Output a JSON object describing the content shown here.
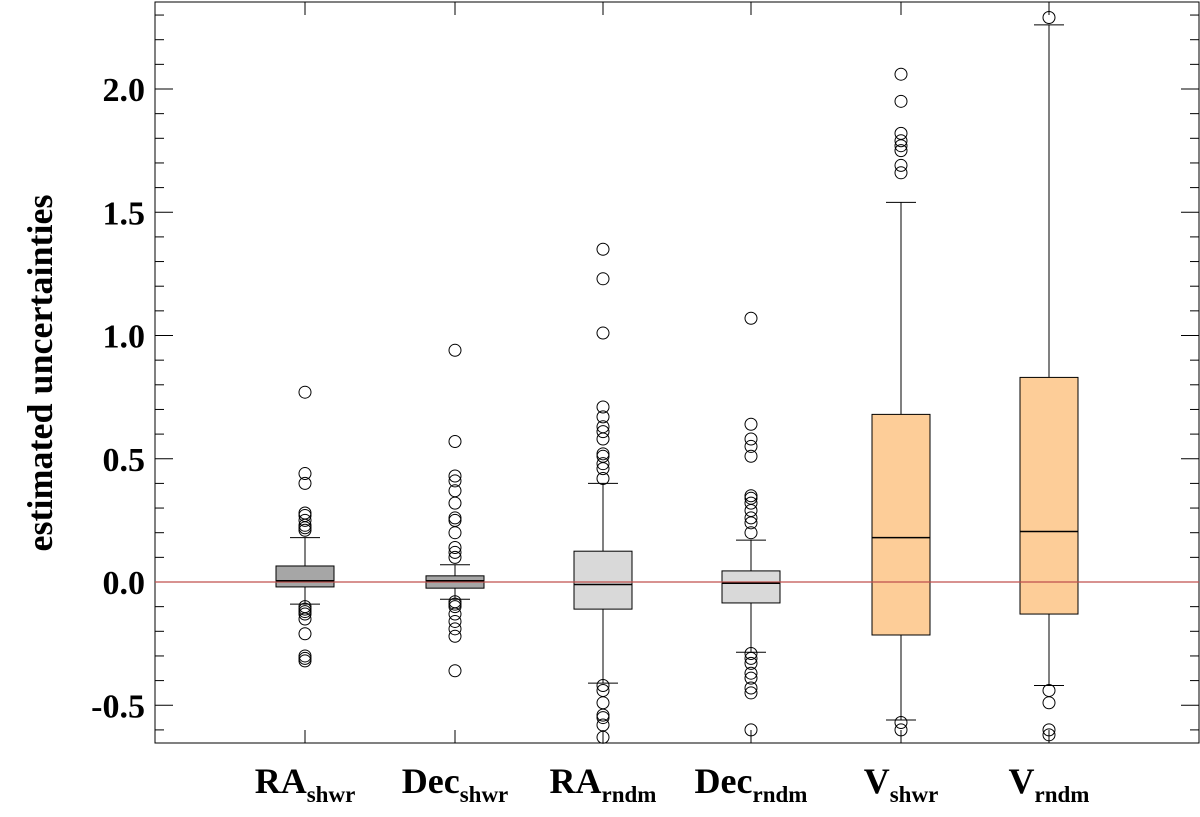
{
  "chart_data": {
    "type": "box",
    "title": "",
    "xlabel": "",
    "ylabel": "estimated uncertainties",
    "ylim": [
      -0.65,
      2.35
    ],
    "yticks": [
      -0.5,
      0.0,
      0.5,
      1.0,
      1.5,
      2.0
    ],
    "ytick_labels": [
      "-0.5",
      "0.0",
      "0.5",
      "1.0",
      "1.5",
      "2.0"
    ],
    "reference_line": {
      "y": 0.0,
      "color": "#c0504d"
    },
    "categories": [
      {
        "main": "RA",
        "sub": "shwr"
      },
      {
        "main": "Dec",
        "sub": "shwr"
      },
      {
        "main": "RA",
        "sub": "rndm"
      },
      {
        "main": "Dec",
        "sub": "rndm"
      },
      {
        "main": "V",
        "sub": "shwr"
      },
      {
        "main": "V",
        "sub": "rndm"
      }
    ],
    "boxes": [
      {
        "name": "RA_shwr",
        "q1": -0.02,
        "median": 0.005,
        "q3": 0.065,
        "whisker_low": -0.09,
        "whisker_high": 0.18,
        "fill": "#a6a6a6",
        "outliers": [
          0.77,
          0.44,
          0.4,
          0.28,
          0.27,
          0.25,
          0.23,
          0.22,
          0.21,
          -0.1,
          -0.11,
          -0.12,
          -0.13,
          -0.15,
          -0.21,
          -0.3,
          -0.31,
          -0.32
        ]
      },
      {
        "name": "Dec_shwr",
        "q1": -0.025,
        "median": 0.005,
        "q3": 0.025,
        "whisker_low": -0.07,
        "whisker_high": 0.07,
        "fill": "#a6a6a6",
        "outliers": [
          0.94,
          0.57,
          0.43,
          0.41,
          0.37,
          0.32,
          0.26,
          0.25,
          0.2,
          0.14,
          0.12,
          0.1,
          -0.08,
          -0.09,
          -0.1,
          -0.13,
          -0.16,
          -0.19,
          -0.22,
          -0.36
        ]
      },
      {
        "name": "RA_rndm",
        "q1": -0.11,
        "median": -0.01,
        "q3": 0.125,
        "whisker_low": -0.41,
        "whisker_high": 0.4,
        "fill": "#d9d9d9",
        "outliers": [
          1.35,
          1.23,
          1.01,
          0.71,
          0.67,
          0.63,
          0.61,
          0.58,
          0.52,
          0.51,
          0.48,
          0.46,
          0.42,
          -0.42,
          -0.44,
          -0.49,
          -0.54,
          -0.55,
          -0.58,
          -0.63
        ]
      },
      {
        "name": "Dec_rndm",
        "q1": -0.085,
        "median": -0.005,
        "q3": 0.045,
        "whisker_low": -0.285,
        "whisker_high": 0.17,
        "fill": "#d9d9d9",
        "outliers": [
          1.07,
          0.64,
          0.58,
          0.55,
          0.51,
          0.35,
          0.34,
          0.32,
          0.29,
          0.26,
          0.24,
          0.2,
          -0.29,
          -0.31,
          -0.33,
          -0.37,
          -0.39,
          -0.43,
          -0.45,
          -0.6
        ]
      },
      {
        "name": "V_shwr",
        "q1": -0.215,
        "median": 0.18,
        "q3": 0.68,
        "whisker_low": -0.56,
        "whisker_high": 1.54,
        "fill": "#fdcd98",
        "outliers": [
          2.06,
          1.95,
          1.82,
          1.79,
          1.77,
          1.75,
          1.69,
          1.66,
          -0.57,
          -0.6
        ]
      },
      {
        "name": "V_rndm",
        "q1": -0.13,
        "median": 0.205,
        "q3": 0.83,
        "whisker_low": -0.42,
        "whisker_high": 2.26,
        "fill": "#fdcd98",
        "outliers": [
          2.29,
          -0.44,
          -0.49,
          -0.6,
          -0.62
        ]
      }
    ]
  }
}
